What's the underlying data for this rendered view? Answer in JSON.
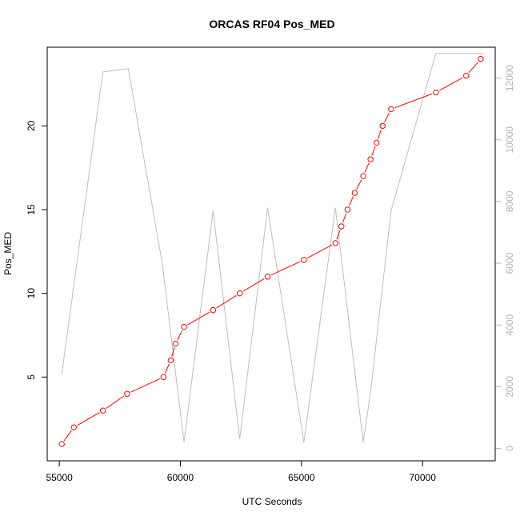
{
  "chart_data": {
    "type": "line",
    "title": "ORCAS RF04 Pos_MED",
    "xlabel": "UTC Seconds",
    "ylabel": "Pos_MED",
    "xlim": [
      54500,
      73000
    ],
    "ylim": [
      0.0,
      24.7
    ],
    "y2lim": [
      -400,
      13000
    ],
    "x_ticks": [
      55000,
      60000,
      65000,
      70000
    ],
    "y_ticks": [
      5,
      10,
      15,
      20
    ],
    "y2_ticks": [
      0,
      2000,
      4000,
      6000,
      8000,
      10000,
      12000
    ],
    "series": [
      {
        "color": "#ff0000",
        "marker": "open-circle",
        "axis": "left",
        "points": [
          [
            55100,
            1
          ],
          [
            55600,
            2
          ],
          [
            56800,
            3
          ],
          [
            57800,
            4
          ],
          [
            59300,
            5
          ],
          [
            59600,
            6
          ],
          [
            59800,
            7
          ],
          [
            60150,
            8
          ],
          [
            61350,
            9
          ],
          [
            62450,
            10
          ],
          [
            63600,
            11
          ],
          [
            65100,
            12
          ],
          [
            66400,
            13
          ],
          [
            66650,
            14
          ],
          [
            66900,
            15
          ],
          [
            67200,
            16
          ],
          [
            67550,
            17
          ],
          [
            67850,
            18
          ],
          [
            68100,
            19
          ],
          [
            68350,
            20
          ],
          [
            68700,
            21
          ],
          [
            70550,
            22
          ],
          [
            71800,
            23
          ],
          [
            72400,
            24
          ]
        ]
      },
      {
        "color": "#bebebe",
        "marker": "none",
        "axis": "right",
        "points": [
          [
            55100,
            2400
          ],
          [
            56800,
            12200
          ],
          [
            57850,
            12300
          ],
          [
            59250,
            6000
          ],
          [
            60150,
            200
          ],
          [
            61350,
            7700
          ],
          [
            62450,
            300
          ],
          [
            63600,
            7800
          ],
          [
            65100,
            200
          ],
          [
            66400,
            7800
          ],
          [
            67200,
            2500
          ],
          [
            67550,
            200
          ],
          [
            67850,
            1800
          ],
          [
            68700,
            7700
          ],
          [
            70550,
            12800
          ],
          [
            72500,
            12800
          ]
        ]
      }
    ]
  }
}
